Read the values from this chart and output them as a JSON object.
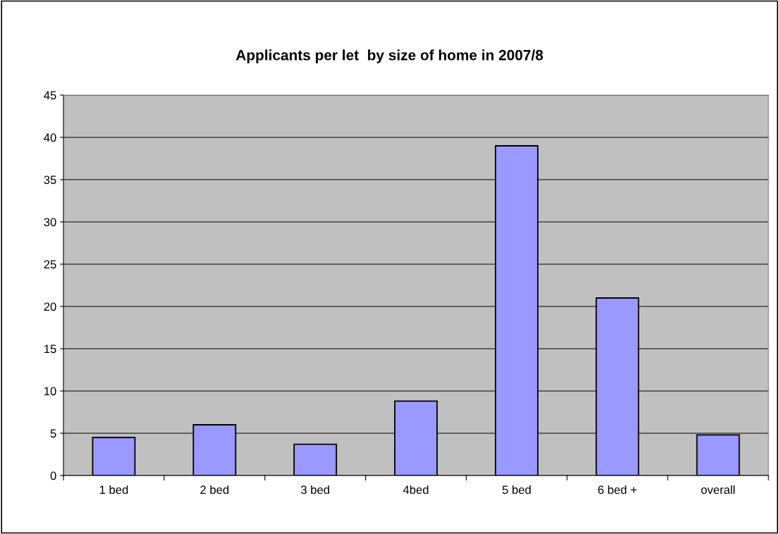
{
  "chart_data": {
    "type": "bar",
    "title": "Applicants per let  by size of home in 2007/8",
    "categories": [
      "1 bed",
      "2 bed",
      "3 bed",
      "4bed",
      "5 bed",
      "6 bed +",
      "overall"
    ],
    "values": [
      4.5,
      6.0,
      3.7,
      8.8,
      39.0,
      21.0,
      4.8
    ],
    "color": "#9999ff",
    "ylim": [
      0,
      45
    ],
    "yticks": [
      0,
      5,
      10,
      15,
      20,
      25,
      30,
      35,
      40,
      45
    ],
    "grid": "y"
  }
}
